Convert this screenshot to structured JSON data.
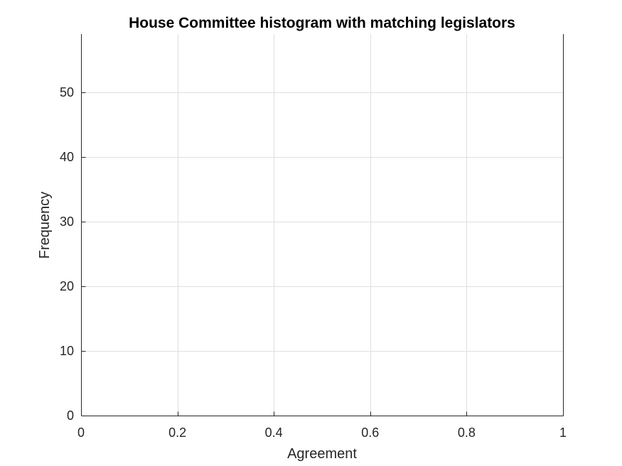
{
  "chart_data": {
    "type": "bar",
    "title": "House Committee histogram with matching legislators",
    "xlabel": "Agreement",
    "ylabel": "Frequency",
    "xlim": [
      0,
      1
    ],
    "ylim": [
      0,
      59
    ],
    "xticks": [
      0,
      0.2,
      0.4,
      0.6,
      0.8,
      1
    ],
    "xtick_labels": [
      "0",
      "0.2",
      "0.4",
      "0.6",
      "0.8",
      "1"
    ],
    "yticks": [
      0,
      10,
      20,
      30,
      40,
      50
    ],
    "ytick_labels": [
      "0",
      "10",
      "20",
      "30",
      "40",
      "50"
    ],
    "grid": true,
    "bins": [],
    "values": [],
    "colors": {
      "axis": "#262626",
      "grid": "#dfdfdf",
      "background": "#ffffff",
      "title": "#000000"
    }
  }
}
